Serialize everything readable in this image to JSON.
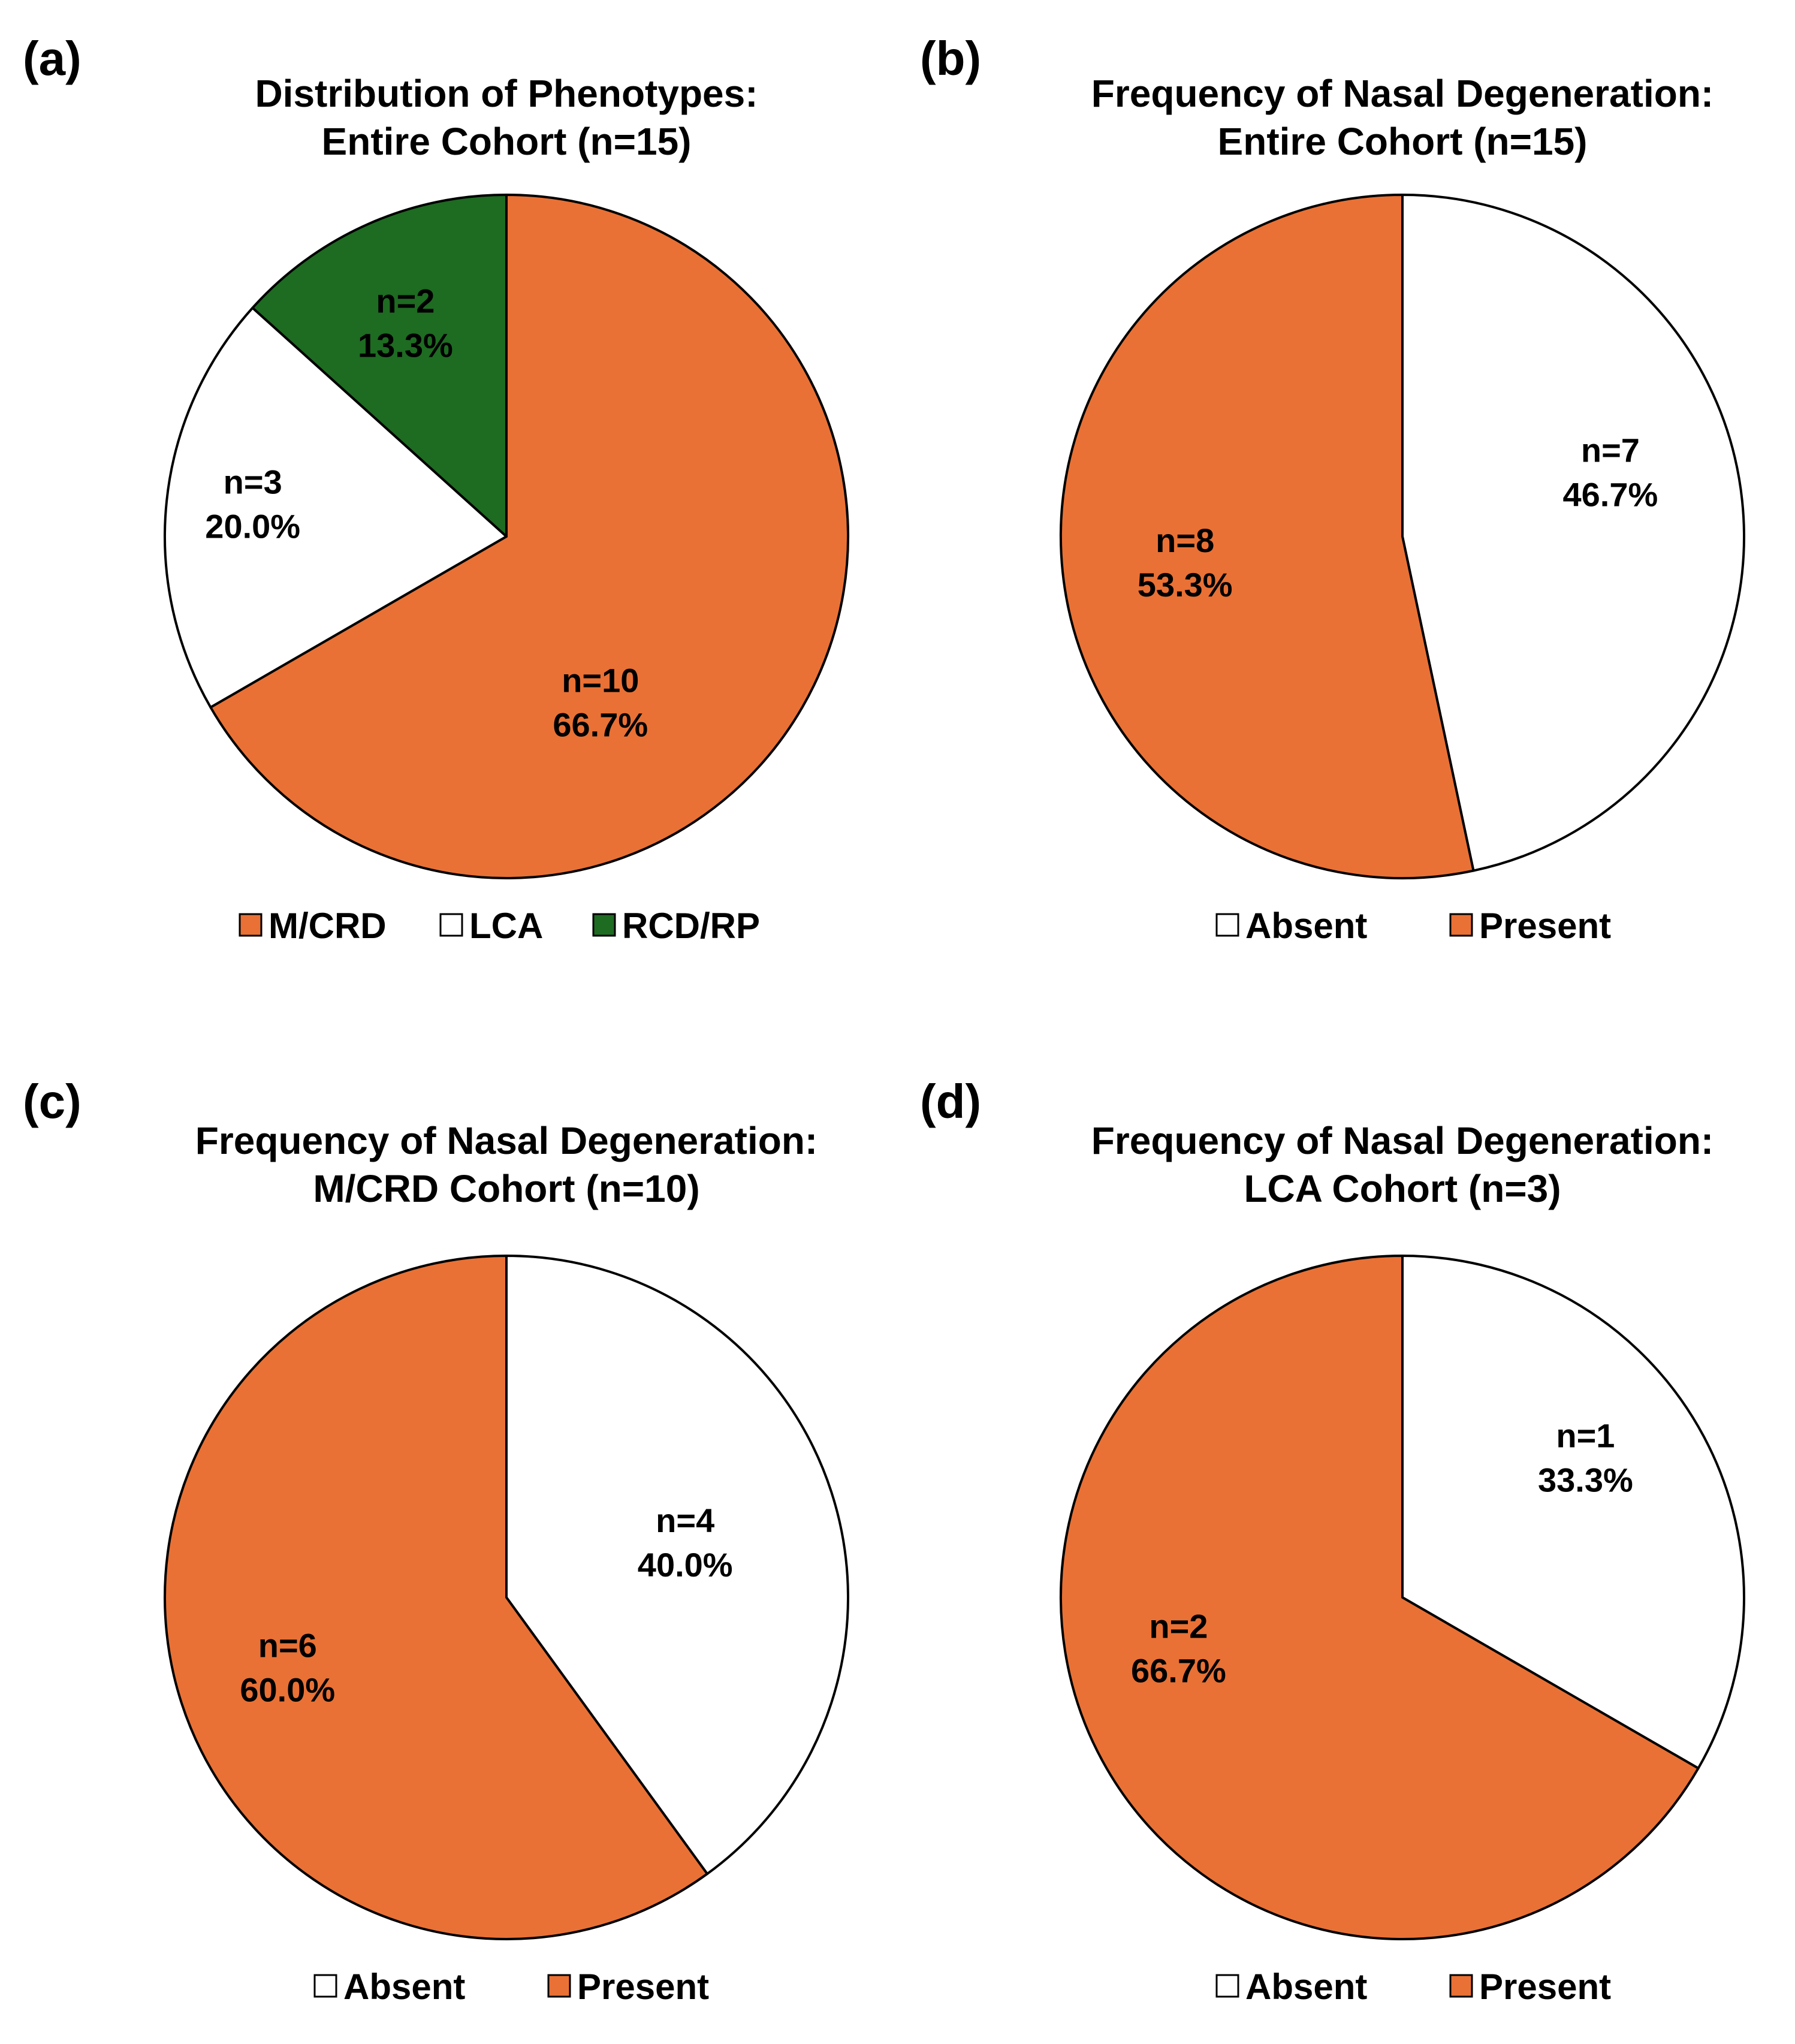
{
  "colors": {
    "orange": "#E97135",
    "white": "#FFFFFF",
    "green": "#1E6B22",
    "stroke": "#000000"
  },
  "chart_data": [
    {
      "panel": "(a)",
      "type": "pie",
      "title_line1": "Distribution of Phenotypes:",
      "title_line2": "Entire Cohort (n=15)",
      "slices": [
        {
          "label": "M/CRD",
          "count": 10,
          "count_text": "n=10",
          "percent": 66.7,
          "percent_text": "66.7%",
          "color": "#E97135"
        },
        {
          "label": "LCA",
          "count": 3,
          "count_text": "n=3",
          "percent": 20.0,
          "percent_text": "20.0%",
          "color": "#FFFFFF"
        },
        {
          "label": "RCD/RP",
          "count": 2,
          "count_text": "n=2",
          "percent": 13.3,
          "percent_text": "13.3%",
          "color": "#1E6B22"
        }
      ],
      "legend": [
        "M/CRD",
        "LCA",
        "RCD/RP"
      ],
      "legend_position": "bottom"
    },
    {
      "panel": "(b)",
      "type": "pie",
      "title_line1": "Frequency of Nasal Degeneration:",
      "title_line2": "Entire Cohort (n=15)",
      "slices": [
        {
          "label": "Absent",
          "count": 7,
          "count_text": "n=7",
          "percent": 46.7,
          "percent_text": "46.7%",
          "color": "#FFFFFF"
        },
        {
          "label": "Present",
          "count": 8,
          "count_text": "n=8",
          "percent": 53.3,
          "percent_text": "53.3%",
          "color": "#E97135"
        }
      ],
      "legend": [
        "Absent",
        "Present"
      ],
      "legend_position": "bottom"
    },
    {
      "panel": "(c)",
      "type": "pie",
      "title_line1": "Frequency of Nasal Degeneration:",
      "title_line2": "M/CRD Cohort (n=10)",
      "slices": [
        {
          "label": "Absent",
          "count": 4,
          "count_text": "n=4",
          "percent": 40.0,
          "percent_text": "40.0%",
          "color": "#FFFFFF"
        },
        {
          "label": "Present",
          "count": 6,
          "count_text": "n=6",
          "percent": 60.0,
          "percent_text": "60.0%",
          "color": "#E97135"
        }
      ],
      "legend": [
        "Absent",
        "Present"
      ],
      "legend_position": "bottom"
    },
    {
      "panel": "(d)",
      "type": "pie",
      "title_line1": "Frequency of Nasal Degeneration:",
      "title_line2": "LCA Cohort (n=3)",
      "slices": [
        {
          "label": "Absent",
          "count": 1,
          "count_text": "n=1",
          "percent": 33.3,
          "percent_text": "33.3%",
          "color": "#FFFFFF"
        },
        {
          "label": "Present",
          "count": 2,
          "count_text": "n=2",
          "percent": 66.7,
          "percent_text": "66.7%",
          "color": "#E97135"
        }
      ],
      "legend": [
        "Absent",
        "Present"
      ],
      "legend_position": "bottom"
    }
  ]
}
